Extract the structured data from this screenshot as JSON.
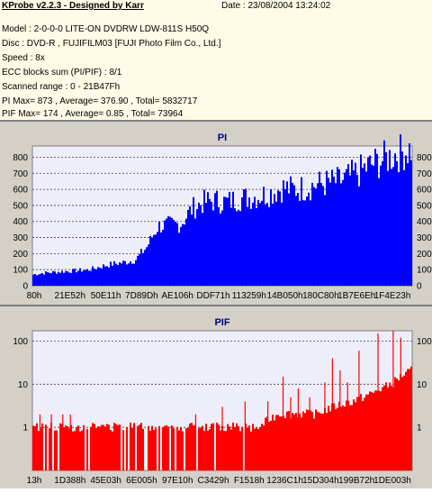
{
  "header": {
    "title": "KProbe v2.2.3 - Designed by Karr",
    "date": "Date : 23/08/2004 13:24:02"
  },
  "info_lines": [
    "Model : 2-0-0-0 LITE-ON DVDRW LDW-811S   H50Q",
    "Disc : DVD-R , FUJIFILM03 [FUJI Photo Film Co., Ltd.]",
    "Speed : 8x",
    "ECC blocks sum (PI/PIF) : 8/1",
    "Scanned range : 0 - 21B47Fh",
    "PI Max= 873 , Average= 376.90 , Total= 5832717",
    "PIF Max= 174 , Average= 0.85 , Total= 73964"
  ],
  "colors": {
    "pi_fill": "#0000ff",
    "pif_fill": "#ff0000",
    "plot_bg": "#eeeefa",
    "panel_bg": "#d4d0c8",
    "info_bg": "#fffbe6"
  },
  "chart_data": [
    {
      "type": "area",
      "title": "PI",
      "xlabel": "",
      "ylabel": "",
      "x_ticks": [
        "80h",
        "21E52h",
        "50E11h",
        "7D89Dh",
        "AE106h",
        "DDF71h",
        "113259h",
        "14B050h",
        "180C80h",
        "1B7E6Eh",
        "1F4E23h"
      ],
      "y_ticks": [
        0,
        100,
        200,
        300,
        400,
        500,
        600,
        700,
        800
      ],
      "ylim": [
        0,
        870
      ],
      "grid": true,
      "x": [
        0,
        0.03,
        0.06,
        0.09,
        0.12,
        0.15,
        0.18,
        0.21,
        0.24,
        0.27,
        0.3,
        0.33,
        0.36,
        0.39,
        0.42,
        0.45,
        0.48,
        0.51,
        0.54,
        0.57,
        0.6,
        0.63,
        0.66,
        0.69,
        0.72,
        0.75,
        0.78,
        0.81,
        0.84,
        0.87,
        0.9,
        0.93,
        0.96,
        1.0
      ],
      "values": [
        70,
        80,
        85,
        90,
        95,
        100,
        120,
        135,
        145,
        160,
        240,
        370,
        380,
        385,
        480,
        520,
        530,
        520,
        540,
        550,
        560,
        580,
        610,
        600,
        610,
        630,
        640,
        650,
        680,
        720,
        760,
        790,
        820,
        850
      ]
    },
    {
      "type": "area",
      "title": "PIF",
      "xlabel": "",
      "ylabel": "",
      "x_ticks": [
        "13h",
        "1D388h",
        "45E03h",
        "6E005h",
        "97E10h",
        "C3429h",
        "F1518h",
        "1236C1h",
        "15D304h",
        "199B72h",
        "1DE003h"
      ],
      "y_ticks": [
        1,
        10,
        100
      ],
      "y_scale": "log",
      "ylim": [
        0.1,
        174
      ],
      "grid": true,
      "x": [
        0,
        0.1,
        0.2,
        0.3,
        0.4,
        0.5,
        0.55,
        0.6,
        0.65,
        0.7,
        0.75,
        0.8,
        0.85,
        0.9,
        0.95,
        1.0
      ],
      "values": [
        1,
        1,
        1,
        1,
        1,
        1,
        1,
        1,
        2,
        2,
        2,
        3,
        4,
        6,
        10,
        20
      ],
      "spikes": [
        {
          "x": 0.02,
          "y": 2
        },
        {
          "x": 0.05,
          "y": 2
        },
        {
          "x": 0.08,
          "y": 2
        },
        {
          "x": 0.1,
          "y": 2
        },
        {
          "x": 0.43,
          "y": 2
        },
        {
          "x": 0.5,
          "y": 3
        },
        {
          "x": 0.56,
          "y": 4
        },
        {
          "x": 0.62,
          "y": 4
        },
        {
          "x": 0.66,
          "y": 15
        },
        {
          "x": 0.68,
          "y": 5
        },
        {
          "x": 0.7,
          "y": 8
        },
        {
          "x": 0.73,
          "y": 5
        },
        {
          "x": 0.77,
          "y": 11
        },
        {
          "x": 0.79,
          "y": 40
        },
        {
          "x": 0.81,
          "y": 21
        },
        {
          "x": 0.83,
          "y": 11
        },
        {
          "x": 0.86,
          "y": 60
        },
        {
          "x": 0.88,
          "y": 4
        },
        {
          "x": 0.91,
          "y": 150
        },
        {
          "x": 0.95,
          "y": 174
        },
        {
          "x": 0.97,
          "y": 120
        }
      ]
    }
  ]
}
